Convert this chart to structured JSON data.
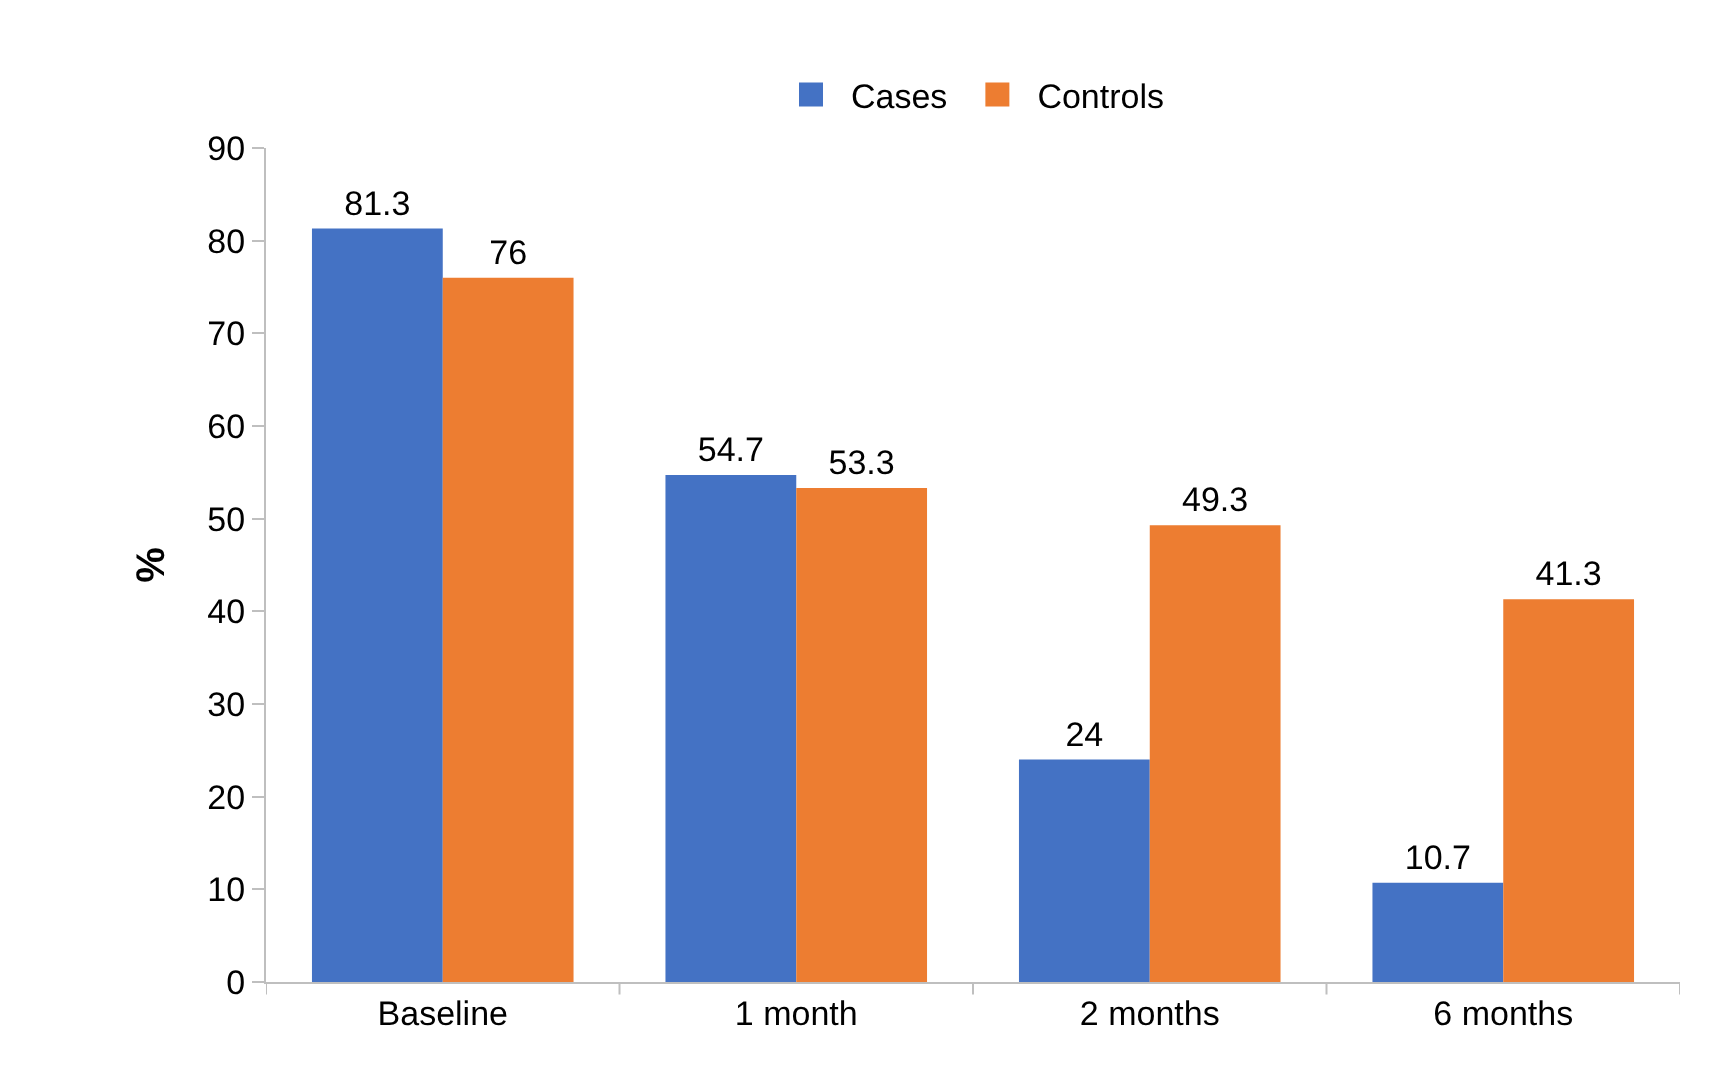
{
  "chart_data": {
    "type": "bar",
    "ylabel": "%",
    "categories": [
      "Baseline",
      "1 month",
      "2 months",
      "6 months"
    ],
    "series": [
      {
        "name": "Cases",
        "color": "#4472c4",
        "values": [
          81.3,
          54.7,
          24,
          10.7
        ]
      },
      {
        "name": "Controls",
        "color": "#ed7d31",
        "values": [
          76,
          53.3,
          49.3,
          41.3
        ]
      }
    ],
    "ylim": [
      0,
      90
    ],
    "yticks": [
      0,
      10,
      20,
      30,
      40,
      50,
      60,
      70,
      80,
      90
    ],
    "data_labels": true,
    "legend": "top",
    "grid": false
  }
}
